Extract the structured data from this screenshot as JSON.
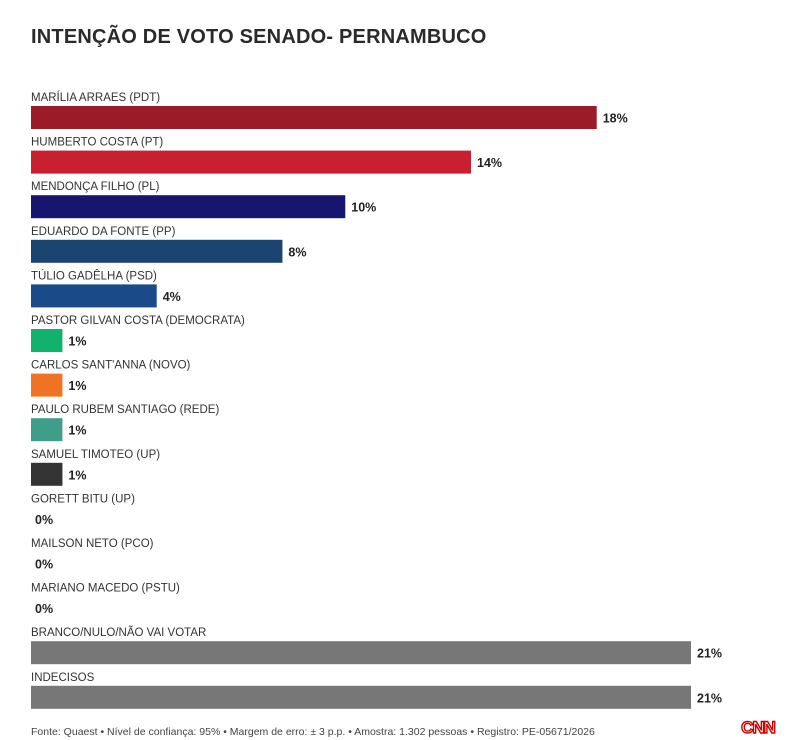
{
  "title": "INTENÇÃO DE VOTO SENADO- PERNAMBUCO",
  "chart_data": {
    "type": "bar",
    "orientation": "horizontal",
    "title": "INTENÇÃO DE VOTO SENADO- PERNAMBUCO",
    "categories": [
      "MARÍLIA ARRAES (PDT)",
      "HUMBERTO COSTA (PT)",
      "MENDONÇA FILHO (PL)",
      "EDUARDO DA FONTE (PP)",
      "TÚLIO GADÊLHA (PSD)",
      "PASTOR GILVAN COSTA (DEMOCRATA)",
      "CARLOS SANT'ANNA (NOVO)",
      "PAULO RUBEM SANTIAGO (REDE)",
      "SAMUEL TIMOTEO (UP)",
      "GORETT BITU (UP)",
      "MAILSON NETO (PCO)",
      "MARIANO MACEDO (PSTU)",
      "BRANCO/NULO/NÃO VAI VOTAR",
      "INDECISOS"
    ],
    "values": [
      18,
      14,
      10,
      8,
      4,
      1,
      1,
      1,
      1,
      0,
      0,
      0,
      21,
      21
    ],
    "value_labels": [
      "18%",
      "14%",
      "10%",
      "8%",
      "4%",
      "1%",
      "1%",
      "1%",
      "1%",
      "0%",
      "0%",
      "0%",
      "21%",
      "21%"
    ],
    "colors": [
      "#9b1c28",
      "#c8202e",
      "#16166e",
      "#1a4370",
      "#1b4a8a",
      "#12b26e",
      "#f07324",
      "#3e9e8a",
      "#333333",
      "#777777",
      "#777777",
      "#777777",
      "#777777",
      "#777777"
    ],
    "xlim": [
      0,
      21
    ],
    "grid": false,
    "legend": "none"
  },
  "footer": "Fonte: Quaest • Nível de confiança: 95% • Margem de erro: ± 3 p.p. • Amostra: 1.302 pessoas • Registro: PE-05671/2026",
  "logo_text": "CNN"
}
